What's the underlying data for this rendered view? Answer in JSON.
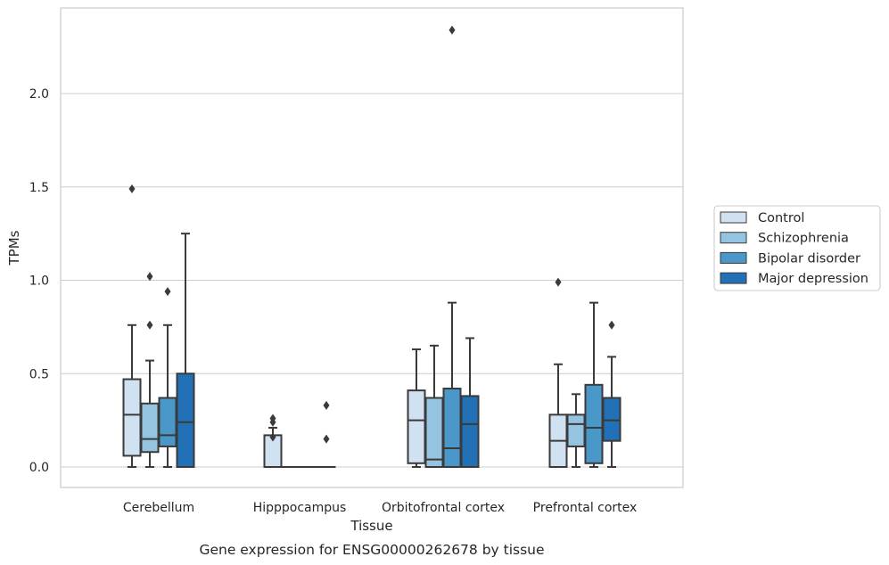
{
  "chart_data": {
    "type": "box",
    "caption": "Gene expression for ENSG00000262678 by tissue",
    "xlabel": "Tissue",
    "ylabel": "TPMs",
    "ylim": [
      -0.11,
      2.47
    ],
    "yticks": [
      "0.0",
      "0.5",
      "1.0",
      "1.5",
      "2.0"
    ],
    "ytick_values": [
      0.0,
      0.5,
      1.0,
      1.5,
      2.0
    ],
    "grid": true,
    "legend_position": "right",
    "categories": [
      "Cerebellum",
      "Hipppocampus",
      "Orbitofrontal cortex",
      "Prefrontal cortex"
    ],
    "series": [
      {
        "name": "Control",
        "color": "#d0e1f2",
        "boxes": [
          {
            "whislo": 0.0,
            "q1": 0.06,
            "med": 0.28,
            "q3": 0.47,
            "whishi": 0.76,
            "fliers": [
              1.49
            ]
          },
          {
            "whislo": 0.0,
            "q1": 0.0,
            "med": 0.0,
            "q3": 0.17,
            "whishi": 0.21,
            "fliers": [
              0.26,
              0.24,
              0.16
            ]
          },
          {
            "whislo": 0.0,
            "q1": 0.02,
            "med": 0.25,
            "q3": 0.41,
            "whishi": 0.63,
            "fliers": []
          },
          {
            "whislo": 0.0,
            "q1": 0.0,
            "med": 0.14,
            "q3": 0.28,
            "whishi": 0.55,
            "fliers": [
              0.99
            ]
          }
        ]
      },
      {
        "name": "Schizophrenia",
        "color": "#94c4df",
        "boxes": [
          {
            "whislo": 0.0,
            "q1": 0.08,
            "med": 0.15,
            "q3": 0.34,
            "whishi": 0.57,
            "fliers": [
              1.02,
              0.76
            ]
          },
          {
            "whislo": 0.0,
            "q1": 0.0,
            "med": 0.0,
            "q3": 0.0,
            "whishi": 0.0,
            "fliers": []
          },
          {
            "whislo": 0.0,
            "q1": 0.0,
            "med": 0.04,
            "q3": 0.37,
            "whishi": 0.65,
            "fliers": []
          },
          {
            "whislo": 0.0,
            "q1": 0.11,
            "med": 0.23,
            "q3": 0.28,
            "whishi": 0.39,
            "fliers": []
          }
        ]
      },
      {
        "name": "Bipolar disorder",
        "color": "#4a98c9",
        "boxes": [
          {
            "whislo": 0.0,
            "q1": 0.11,
            "med": 0.17,
            "q3": 0.37,
            "whishi": 0.76,
            "fliers": [
              0.94
            ]
          },
          {
            "whislo": 0.0,
            "q1": 0.0,
            "med": 0.0,
            "q3": 0.0,
            "whishi": 0.0,
            "fliers": []
          },
          {
            "whislo": 0.0,
            "q1": 0.0,
            "med": 0.1,
            "q3": 0.42,
            "whishi": 0.88,
            "fliers": [
              2.34
            ]
          },
          {
            "whislo": 0.0,
            "q1": 0.02,
            "med": 0.21,
            "q3": 0.44,
            "whishi": 0.88,
            "fliers": []
          }
        ]
      },
      {
        "name": "Major depression",
        "color": "#2270b5",
        "boxes": [
          {
            "whislo": 0.0,
            "q1": 0.0,
            "med": 0.24,
            "q3": 0.5,
            "whishi": 1.25,
            "fliers": []
          },
          {
            "whislo": 0.0,
            "q1": 0.0,
            "med": 0.0,
            "q3": 0.0,
            "whishi": 0.0,
            "fliers": [
              0.33,
              0.15
            ]
          },
          {
            "whislo": 0.0,
            "q1": 0.0,
            "med": 0.23,
            "q3": 0.38,
            "whishi": 0.69,
            "fliers": []
          },
          {
            "whislo": 0.0,
            "q1": 0.14,
            "med": 0.25,
            "q3": 0.37,
            "whishi": 0.59,
            "fliers": [
              0.76
            ]
          }
        ]
      }
    ]
  }
}
